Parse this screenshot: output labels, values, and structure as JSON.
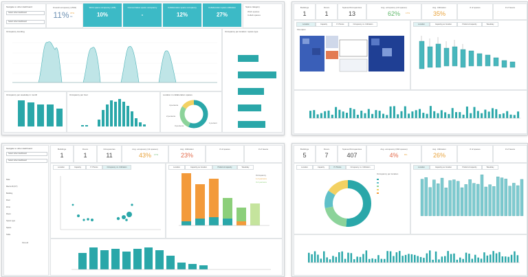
{
  "panel1": {
    "sidebar": {
      "title": "Navigate to other dashboard",
      "select1": "Select other dashboard",
      "select2": "Select other dashboard"
    },
    "kpi_overall": {
      "label": "Overall occupancy (1504)",
      "value": "11%",
      "sub1": "37%",
      "sub2": "19"
    },
    "kpis": [
      {
        "label": "Work space occupancy (195)",
        "value": "10%"
      },
      {
        "label": "Concentration space occupancy",
        "value": "-"
      },
      {
        "label": "Collaboration space occupancy",
        "value": "12%"
      },
      {
        "label": "Collaboration space utilization",
        "value": "27%"
      }
    ],
    "space_category": {
      "title": "Space category",
      "items": [
        "Work spaces",
        "Collab spaces"
      ]
    },
    "charts": {
      "trend": "Occupancy trending",
      "floor": "Occupancy per location / space type",
      "month": "Occupancy per weekday in month",
      "hour": "Occupancy per hour",
      "donut": "Location in collaboration spaces"
    },
    "donut_labels": [
      "4 persons",
      "1 person",
      "2 persons",
      "3 persons"
    ]
  },
  "panel2": {
    "kpis": [
      {
        "label": "Buildings",
        "value": "1"
      },
      {
        "label": "Floors",
        "value": "1"
      },
      {
        "label": "Spaces/Occupancies",
        "value": "13"
      },
      {
        "label": "Avg. occupancy (13 spaces)",
        "value": "62%",
        "sub": "17%"
      },
      {
        "label": "Avg. Utilization",
        "value": "35%"
      },
      {
        "label": "# of spaces",
        "value": ""
      },
      {
        "label": "# of beans",
        "value": ""
      }
    ],
    "tabs": [
      "Location",
      "Capacity",
      "P. Photos",
      "Occupancy vs. Utilization"
    ],
    "tabs_right": [
      "Location",
      "Capacity per location",
      "Preferred capacity",
      "Weekday"
    ],
    "floorplan_title": "Floorplan"
  },
  "panel3": {
    "sidebar": {
      "title": "Navigate to other dashboard",
      "select1": "Select other dashboard",
      "select2": "Select other dashboard",
      "items": [
        "Date",
        "Macro-B (ICT)",
        "Building",
        "Floor",
        "Zone",
        "Room",
        "Space type",
        "Space",
        "Table"
      ],
      "all_label": "View all"
    },
    "kpis": [
      {
        "label": "Buildings",
        "value": "1"
      },
      {
        "label": "Floors",
        "value": "1"
      },
      {
        "label": "Occupancies",
        "value": "11"
      },
      {
        "label": "Avg. occupancy (11 spaces)",
        "value": "43%",
        "sub": "17%"
      },
      {
        "label": "Avg. Utilization",
        "value": "23%"
      },
      {
        "label": "# of spaces",
        "value": ""
      },
      {
        "label": "# of beans",
        "value": ""
      }
    ],
    "tabs": [
      "Location",
      "Capacity",
      "P. Photos",
      "Occupancy vs. Utilization"
    ],
    "tabs_right": [
      "Location",
      "Capacity per location",
      "Preferred capacity",
      "Weekday"
    ],
    "legend": [
      "Occupancy",
      "1-2 persons",
      "3-4 persons"
    ]
  },
  "panel4": {
    "kpis": [
      {
        "label": "Buildings",
        "value": "5"
      },
      {
        "label": "Floors",
        "value": "7"
      },
      {
        "label": "Spaces/Occupancies",
        "value": "407"
      },
      {
        "label": "Avg. occupancy (394 spaces)",
        "value": "4%",
        "sub": "8%"
      },
      {
        "label": "Avg. Utilization",
        "value": "26%"
      },
      {
        "label": "# of spaces",
        "value": ""
      },
      {
        "label": "# of beans",
        "value": ""
      }
    ],
    "tabs": [
      "Location",
      "Capacity",
      "P. Photos",
      "Occupancy vs. Utilization"
    ],
    "tabs_right": [
      "Location",
      "Capacity per location",
      "Preferred capacity",
      "Weekday"
    ],
    "donut_legend_title": "Occupancy per location",
    "colors": {
      "teal": "#2aa7a9",
      "green": "#8cd39a",
      "yellow": "#f3d162",
      "orange": "#f39a3a"
    }
  }
}
